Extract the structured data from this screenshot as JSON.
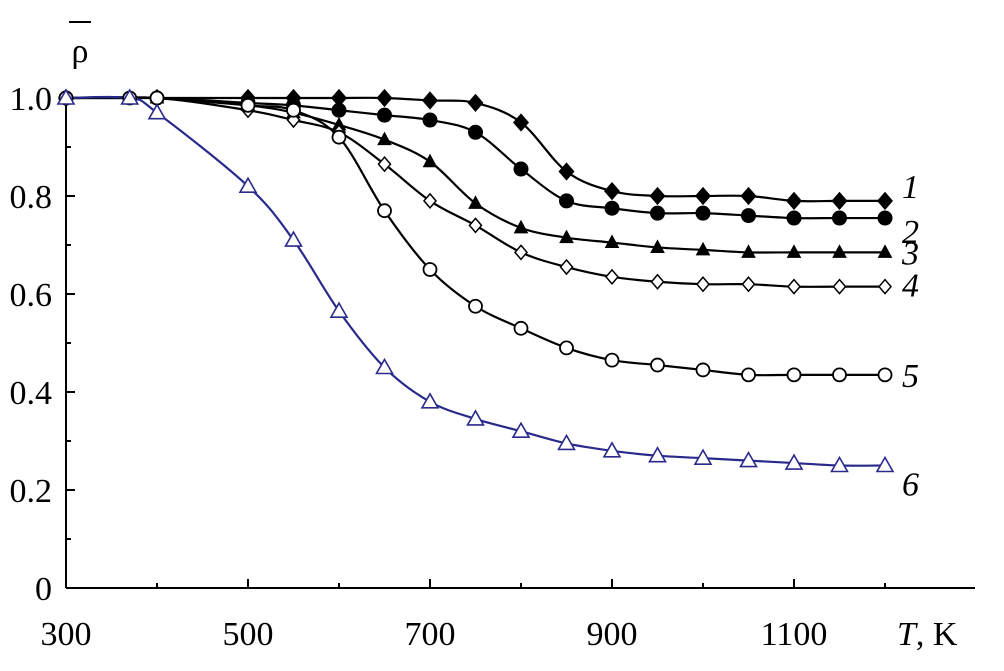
{
  "chart_data": {
    "type": "line",
    "title": "",
    "ylabel": "ρ",
    "xlabel_italic": "T",
    "xlabel_rest": ", K",
    "xlim": [
      300,
      1200
    ],
    "ylim": [
      0,
      1.0
    ],
    "x_ticks": [
      300,
      500,
      700,
      900,
      1100
    ],
    "x_tick_labels": [
      "300",
      "500",
      "700",
      "900",
      "1100"
    ],
    "y_ticks": [
      0,
      0.2,
      0.4,
      0.6,
      0.8,
      1.0
    ],
    "y_tick_labels": [
      "0",
      "0.2",
      "0.4",
      "0.6",
      "0.8",
      "1.0"
    ],
    "grid": false,
    "series": [
      {
        "name": "1",
        "marker": "diamond-filled",
        "color": "#000000",
        "x": [
          300,
          400,
          500,
          550,
          600,
          650,
          700,
          750,
          800,
          850,
          900,
          950,
          1000,
          1050,
          1100,
          1150,
          1200
        ],
        "y": [
          1.0,
          1.0,
          1.0,
          1.0,
          1.0,
          1.0,
          0.995,
          0.99,
          0.95,
          0.85,
          0.81,
          0.8,
          0.8,
          0.8,
          0.79,
          0.79,
          0.79
        ]
      },
      {
        "name": "2",
        "marker": "circle-filled",
        "color": "#000000",
        "x": [
          300,
          400,
          500,
          550,
          600,
          650,
          700,
          750,
          800,
          850,
          900,
          950,
          1000,
          1050,
          1100,
          1150,
          1200
        ],
        "y": [
          1.0,
          1.0,
          0.99,
          0.985,
          0.975,
          0.965,
          0.955,
          0.93,
          0.855,
          0.79,
          0.775,
          0.765,
          0.765,
          0.76,
          0.755,
          0.755,
          0.755
        ]
      },
      {
        "name": "3",
        "marker": "triangle-filled",
        "color": "#000000",
        "x": [
          300,
          400,
          500,
          550,
          600,
          650,
          700,
          750,
          800,
          850,
          900,
          950,
          1000,
          1050,
          1100,
          1150,
          1200
        ],
        "y": [
          1.0,
          1.0,
          0.985,
          0.97,
          0.945,
          0.915,
          0.87,
          0.785,
          0.735,
          0.715,
          0.705,
          0.695,
          0.69,
          0.685,
          0.685,
          0.685,
          0.685
        ]
      },
      {
        "name": "4",
        "marker": "diamond-open",
        "color": "#000000",
        "x": [
          300,
          400,
          500,
          550,
          600,
          650,
          700,
          750,
          800,
          850,
          900,
          950,
          1000,
          1050,
          1100,
          1150,
          1200
        ],
        "y": [
          1.0,
          1.0,
          0.975,
          0.955,
          0.93,
          0.865,
          0.79,
          0.74,
          0.685,
          0.655,
          0.635,
          0.625,
          0.62,
          0.62,
          0.615,
          0.615,
          0.615
        ]
      },
      {
        "name": "5",
        "marker": "circle-open",
        "color": "#000000",
        "x": [
          300,
          370,
          400,
          500,
          550,
          600,
          650,
          700,
          750,
          800,
          850,
          900,
          950,
          1000,
          1050,
          1100,
          1150,
          1200
        ],
        "y": [
          1.0,
          1.0,
          1.0,
          0.985,
          0.975,
          0.92,
          0.77,
          0.65,
          0.575,
          0.53,
          0.49,
          0.465,
          0.455,
          0.445,
          0.435,
          0.435,
          0.435,
          0.435
        ]
      },
      {
        "name": "6",
        "marker": "triangle-open",
        "color": "#2a2a8c",
        "x": [
          300,
          370,
          400,
          500,
          550,
          600,
          650,
          700,
          750,
          800,
          850,
          900,
          950,
          1000,
          1050,
          1100,
          1150,
          1200
        ],
        "y": [
          1.0,
          1.0,
          0.97,
          0.82,
          0.71,
          0.565,
          0.45,
          0.38,
          0.345,
          0.32,
          0.295,
          0.28,
          0.27,
          0.265,
          0.26,
          0.255,
          0.25,
          0.25
        ]
      }
    ]
  }
}
